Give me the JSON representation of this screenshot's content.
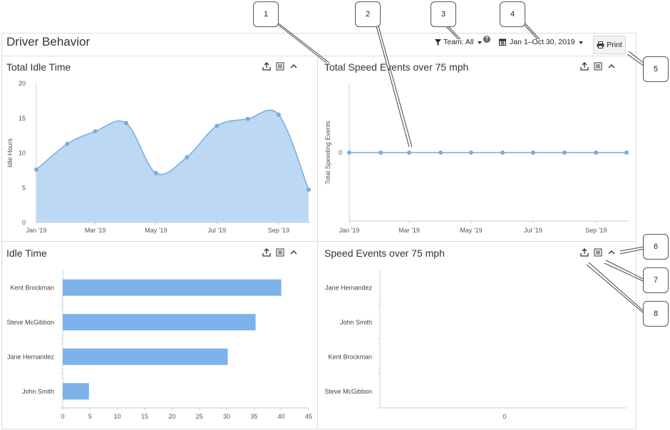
{
  "page": {
    "title": "Driver Behavior",
    "team_filter": "Team: All",
    "help": "?",
    "date_filter": "Jan 1–Oct 30, 2019",
    "print_label": "Print"
  },
  "icons": [
    "filter-icon",
    "calendar-icon",
    "print-icon",
    "export-icon",
    "list-icon",
    "collapse-icon",
    "help-icon"
  ],
  "colors": {
    "series_line": "#74ace5",
    "area_fill": "#bcd8f3",
    "bar_fill": "#7db3ea"
  },
  "callouts": [
    "1",
    "2",
    "3",
    "4",
    "5",
    "6",
    "7",
    "8"
  ],
  "panels": {
    "idle_time_total": {
      "title": "Total Idle Time"
    },
    "speed_events_total": {
      "title": "Total Speed Events over 75 mph"
    },
    "idle_time": {
      "title": "Idle Time"
    },
    "speed_events": {
      "title": "Speed Events over 75 mph"
    }
  },
  "chart_data": [
    {
      "type": "area",
      "title": "Total Idle Time",
      "ylabel": "Idle Hours",
      "ylim": [
        0,
        20
      ],
      "yticks": [
        0,
        5,
        10,
        15,
        20
      ],
      "x_tick_labels": [
        "Jan '19",
        "Mar '19",
        "May '19",
        "Jul '19",
        "Sep '19"
      ],
      "x": [
        "2019-01-01",
        "2019-02-01",
        "2019-03-01",
        "2019-04-01",
        "2019-05-01",
        "2019-06-01",
        "2019-07-01",
        "2019-08-01",
        "2019-09-01",
        "2019-10-01"
      ],
      "values": [
        7.6,
        11.3,
        13.1,
        14.3,
        7.1,
        9.4,
        13.9,
        14.9,
        15.5,
        4.7
      ]
    },
    {
      "type": "line",
      "title": "Total Speed Events over 75 mph",
      "ylabel": "Total Speeding Events",
      "yticks": [
        0
      ],
      "x_tick_labels": [
        "Jan '19",
        "Mar '19",
        "May '19",
        "Jul '19",
        "Sep '19"
      ],
      "x": [
        "2019-01-01",
        "2019-02-01",
        "2019-03-01",
        "2019-04-01",
        "2019-05-01",
        "2019-06-01",
        "2019-07-01",
        "2019-08-01",
        "2019-09-01",
        "2019-10-01"
      ],
      "values": [
        0,
        0,
        0,
        0,
        0,
        0,
        0,
        0,
        0,
        0
      ]
    },
    {
      "type": "bar",
      "orientation": "horizontal",
      "title": "Idle Time",
      "categories": [
        "Kent  Brockman",
        "Steve McGibbon",
        "Jane  Hernandez",
        "John  Smith"
      ],
      "values": [
        40,
        35.3,
        30.2,
        4.8
      ],
      "xlim": [
        0,
        45
      ],
      "xticks": [
        0,
        5,
        10,
        15,
        20,
        25,
        30,
        35,
        40,
        45
      ]
    },
    {
      "type": "bar",
      "orientation": "horizontal",
      "title": "Speed Events over 75 mph",
      "categories": [
        "Jane  Hernandez",
        "John  Smith",
        "Kent  Brockman",
        "Steve  McGibbon"
      ],
      "values": [
        0,
        0,
        0,
        0
      ],
      "xticks": [
        0
      ]
    }
  ]
}
